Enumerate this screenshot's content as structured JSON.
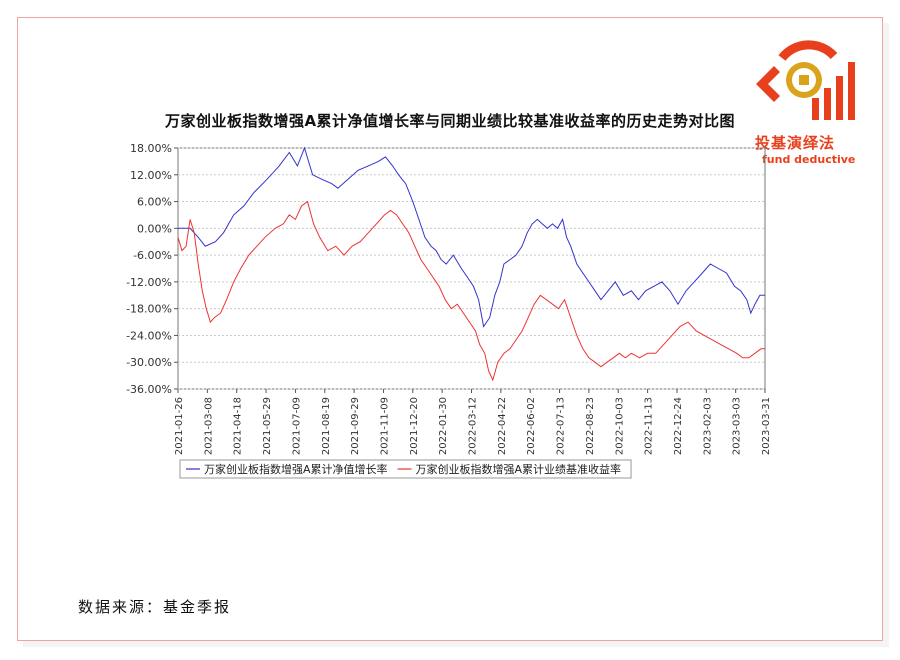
{
  "chart_data": {
    "type": "line",
    "title": "万家创业板指数增强A累计净值增长率与同期业绩比较基准收益率的历史走势对比图",
    "yticks": [
      "18.00%",
      "12.00%",
      "6.00%",
      "0.00%",
      "-6.00%",
      "-12.00%",
      "-18.00%",
      "-24.00%",
      "-30.00%",
      "-36.00%"
    ],
    "ylim": [
      -36,
      18
    ],
    "xticks": [
      "2021-01-26",
      "2021-03-08",
      "2021-04-18",
      "2021-05-29",
      "2021-07-09",
      "2021-08-19",
      "2021-09-29",
      "2021-11-09",
      "2021-12-20",
      "2022-01-30",
      "2022-03-12",
      "2022-04-22",
      "2022-06-02",
      "2022-07-13",
      "2022-08-23",
      "2022-10-03",
      "2022-11-13",
      "2022-12-24",
      "2023-02-03",
      "2023-03-03",
      "2023-03-31"
    ],
    "grid": true,
    "legend_position": "bottom-left",
    "series": [
      {
        "name": "万家创业板指数增强A累计净值增长率",
        "color": "#3333cc",
        "points": [
          [
            0,
            0
          ],
          [
            12,
            0
          ],
          [
            20,
            -2
          ],
          [
            27,
            -4
          ],
          [
            37,
            -3
          ],
          [
            45,
            -1
          ],
          [
            55,
            3
          ],
          [
            65,
            5
          ],
          [
            75,
            8
          ],
          [
            88,
            11
          ],
          [
            100,
            14
          ],
          [
            110,
            17
          ],
          [
            118,
            14
          ],
          [
            125,
            18
          ],
          [
            133,
            12
          ],
          [
            142,
            11
          ],
          [
            152,
            10
          ],
          [
            158,
            9
          ],
          [
            168,
            11
          ],
          [
            178,
            13
          ],
          [
            188,
            14
          ],
          [
            198,
            15
          ],
          [
            205,
            16
          ],
          [
            212,
            14
          ],
          [
            218,
            12
          ],
          [
            225,
            10
          ],
          [
            232,
            6
          ],
          [
            238,
            2
          ],
          [
            244,
            -2
          ],
          [
            250,
            -4
          ],
          [
            255,
            -5
          ],
          [
            260,
            -7
          ],
          [
            265,
            -8
          ],
          [
            272,
            -6
          ],
          [
            280,
            -9
          ],
          [
            286,
            -11
          ],
          [
            292,
            -13
          ],
          [
            297,
            -16
          ],
          [
            302,
            -22
          ],
          [
            308,
            -20
          ],
          [
            313,
            -15
          ],
          [
            318,
            -12
          ],
          [
            322,
            -8
          ],
          [
            328,
            -7
          ],
          [
            334,
            -6
          ],
          [
            340,
            -4
          ],
          [
            345,
            -1
          ],
          [
            350,
            1
          ],
          [
            355,
            2
          ],
          [
            360,
            1
          ],
          [
            365,
            0
          ],
          [
            370,
            1
          ],
          [
            375,
            0
          ],
          [
            380,
            2
          ],
          [
            384,
            -2
          ],
          [
            388,
            -4
          ],
          [
            394,
            -8
          ],
          [
            400,
            -10
          ],
          [
            406,
            -12
          ],
          [
            412,
            -14
          ],
          [
            418,
            -16
          ],
          [
            425,
            -14
          ],
          [
            432,
            -12
          ],
          [
            440,
            -15
          ],
          [
            448,
            -14
          ],
          [
            455,
            -16
          ],
          [
            462,
            -14
          ],
          [
            470,
            -13
          ],
          [
            478,
            -12
          ],
          [
            486,
            -14
          ],
          [
            494,
            -17
          ],
          [
            502,
            -14
          ],
          [
            510,
            -12
          ],
          [
            518,
            -10
          ],
          [
            526,
            -8
          ],
          [
            534,
            -9
          ],
          [
            542,
            -10
          ],
          [
            550,
            -13
          ],
          [
            556,
            -14
          ],
          [
            562,
            -16
          ],
          [
            566,
            -19
          ],
          [
            570,
            -17
          ],
          [
            575,
            -15
          ],
          [
            580,
            -15
          ]
        ]
      },
      {
        "name": "万家创业板指数增强A累计业绩基准收益率",
        "color": "#ee3333",
        "points": [
          [
            0,
            -2
          ],
          [
            4,
            -5
          ],
          [
            8,
            -4
          ],
          [
            12,
            2
          ],
          [
            16,
            -1
          ],
          [
            20,
            -8
          ],
          [
            24,
            -14
          ],
          [
            28,
            -18
          ],
          [
            32,
            -21
          ],
          [
            36,
            -20
          ],
          [
            42,
            -19
          ],
          [
            48,
            -16
          ],
          [
            55,
            -12
          ],
          [
            62,
            -9
          ],
          [
            70,
            -6
          ],
          [
            78,
            -4
          ],
          [
            86,
            -2
          ],
          [
            96,
            0
          ],
          [
            104,
            1
          ],
          [
            110,
            3
          ],
          [
            116,
            2
          ],
          [
            122,
            5
          ],
          [
            128,
            6
          ],
          [
            134,
            1
          ],
          [
            140,
            -2
          ],
          [
            148,
            -5
          ],
          [
            156,
            -4
          ],
          [
            164,
            -6
          ],
          [
            172,
            -4
          ],
          [
            180,
            -3
          ],
          [
            188,
            -1
          ],
          [
            196,
            1
          ],
          [
            204,
            3
          ],
          [
            210,
            4
          ],
          [
            216,
            3
          ],
          [
            222,
            1
          ],
          [
            228,
            -1
          ],
          [
            234,
            -4
          ],
          [
            240,
            -7
          ],
          [
            246,
            -9
          ],
          [
            252,
            -11
          ],
          [
            258,
            -13
          ],
          [
            264,
            -16
          ],
          [
            270,
            -18
          ],
          [
            276,
            -17
          ],
          [
            282,
            -19
          ],
          [
            288,
            -21
          ],
          [
            294,
            -23
          ],
          [
            298,
            -26
          ],
          [
            303,
            -28
          ],
          [
            307,
            -32
          ],
          [
            311,
            -34
          ],
          [
            316,
            -30
          ],
          [
            322,
            -28
          ],
          [
            328,
            -27
          ],
          [
            334,
            -25
          ],
          [
            340,
            -23
          ],
          [
            346,
            -20
          ],
          [
            352,
            -17
          ],
          [
            358,
            -15
          ],
          [
            364,
            -16
          ],
          [
            370,
            -17
          ],
          [
            376,
            -18
          ],
          [
            382,
            -16
          ],
          [
            388,
            -20
          ],
          [
            394,
            -24
          ],
          [
            400,
            -27
          ],
          [
            406,
            -29
          ],
          [
            412,
            -30
          ],
          [
            418,
            -31
          ],
          [
            424,
            -30
          ],
          [
            430,
            -29
          ],
          [
            436,
            -28
          ],
          [
            442,
            -29
          ],
          [
            448,
            -28
          ],
          [
            456,
            -29
          ],
          [
            464,
            -28
          ],
          [
            472,
            -28
          ],
          [
            480,
            -26
          ],
          [
            488,
            -24
          ],
          [
            496,
            -22
          ],
          [
            504,
            -21
          ],
          [
            512,
            -23
          ],
          [
            520,
            -24
          ],
          [
            528,
            -25
          ],
          [
            536,
            -26
          ],
          [
            544,
            -27
          ],
          [
            552,
            -28
          ],
          [
            558,
            -29
          ],
          [
            564,
            -29
          ],
          [
            570,
            -28
          ],
          [
            576,
            -27
          ],
          [
            580,
            -27
          ]
        ]
      }
    ]
  },
  "source_text": "数据来源：基金季报",
  "logo": {
    "name_cn": "投基演绎法",
    "name_en": "fund deductive"
  }
}
